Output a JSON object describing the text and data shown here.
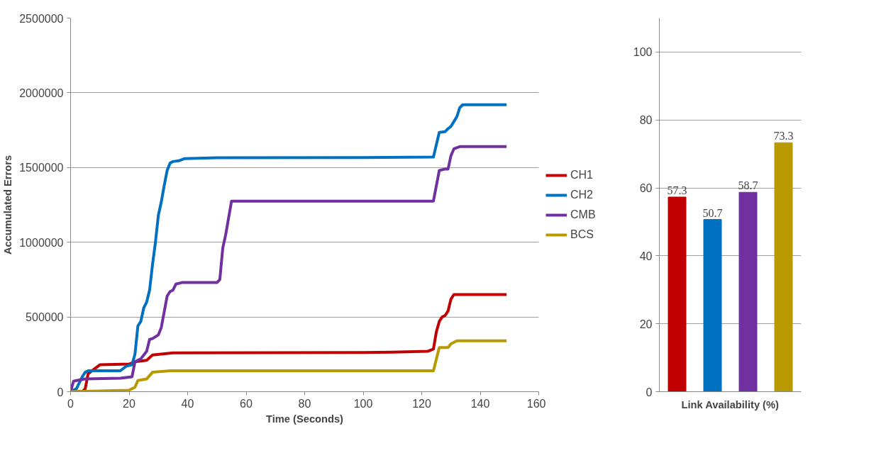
{
  "chart_data": [
    {
      "type": "line",
      "xlabel": "Time (Seconds)",
      "ylabel": "Accumulated Errors",
      "xlim": [
        0,
        160
      ],
      "xticks": [
        0,
        20,
        40,
        60,
        80,
        100,
        120,
        140,
        160
      ],
      "ylim": [
        0,
        2500000
      ],
      "yticks": [
        0,
        500000,
        1000000,
        1500000,
        2000000,
        2500000
      ],
      "grid": "y",
      "legend": "right",
      "marker": "none",
      "line_style": "solid",
      "series": [
        {
          "name": "CH1",
          "color": "#c00000",
          "x": [
            0,
            4,
            5,
            6,
            8,
            10,
            20,
            22,
            26,
            28,
            35,
            100,
            110,
            122,
            124,
            125,
            126,
            127,
            128,
            129,
            130,
            131,
            149
          ],
          "values": [
            0,
            0,
            20000,
            120000,
            150000,
            180000,
            185000,
            200000,
            210000,
            245000,
            260000,
            262000,
            265000,
            270000,
            285000,
            400000,
            470000,
            500000,
            510000,
            540000,
            620000,
            650000,
            650000
          ]
        },
        {
          "name": "CH2",
          "color": "#0070c0",
          "x": [
            0,
            2,
            4,
            5,
            6,
            17,
            19,
            21,
            22,
            23,
            24,
            25,
            26,
            27,
            28,
            29,
            30,
            31,
            32,
            33,
            34,
            35,
            37,
            39,
            50,
            100,
            124,
            126,
            128,
            129,
            130,
            132,
            133,
            134,
            149
          ],
          "values": [
            0,
            20000,
            100000,
            130000,
            140000,
            140000,
            170000,
            180000,
            250000,
            440000,
            470000,
            560000,
            600000,
            680000,
            850000,
            1000000,
            1180000,
            1270000,
            1380000,
            1480000,
            1530000,
            1540000,
            1545000,
            1560000,
            1565000,
            1567000,
            1570000,
            1735000,
            1740000,
            1760000,
            1775000,
            1840000,
            1900000,
            1920000,
            1920000
          ]
        },
        {
          "name": "CMB",
          "color": "#7030a0",
          "x": [
            0,
            1,
            2,
            5,
            17,
            19,
            21,
            22,
            24,
            26,
            27,
            28,
            30,
            31,
            33,
            34,
            35,
            36,
            38,
            50,
            51,
            52,
            53,
            55,
            124,
            126,
            128,
            129,
            130,
            131,
            133,
            149
          ],
          "values": [
            0,
            70000,
            75000,
            85000,
            90000,
            95000,
            100000,
            200000,
            220000,
            270000,
            350000,
            355000,
            380000,
            430000,
            640000,
            670000,
            680000,
            720000,
            730000,
            730000,
            750000,
            960000,
            1050000,
            1275000,
            1275000,
            1480000,
            1490000,
            1490000,
            1580000,
            1625000,
            1640000,
            1640000
          ]
        },
        {
          "name": "BCS",
          "color": "#b89a00",
          "x": [
            0,
            20,
            22,
            23,
            26,
            28,
            31,
            34,
            50,
            124,
            126,
            129,
            130,
            132,
            149
          ],
          "values": [
            0,
            10000,
            30000,
            75000,
            85000,
            130000,
            135000,
            140000,
            140000,
            140000,
            295000,
            295000,
            320000,
            340000,
            340000
          ]
        }
      ]
    },
    {
      "type": "bar",
      "xlabel": "Link Availability (%)",
      "categories": [
        null,
        null,
        null,
        null
      ],
      "values": [
        57.3,
        50.7,
        58.7,
        73.3
      ],
      "colors": [
        "#c00000",
        "#0070c0",
        "#7030a0",
        "#b89a00"
      ],
      "ylim": [
        0,
        110
      ],
      "yticks": [
        0,
        20,
        40,
        60,
        80,
        100
      ],
      "grid": "y",
      "data_labels": true
    }
  ]
}
